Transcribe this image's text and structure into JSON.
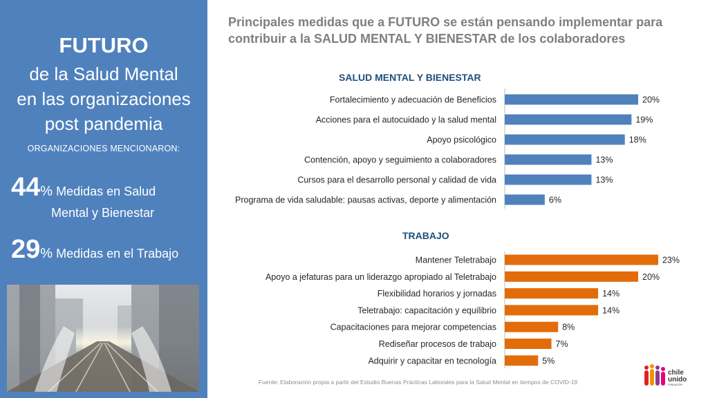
{
  "sidebar": {
    "title": "FUTURO",
    "subtitle_lines": [
      "de la Salud Mental",
      "en las organizaciones",
      "post pandemia"
    ],
    "orgs_label": "ORGANIZACIONES MENCIONARON:",
    "stats": [
      {
        "value": "44",
        "pct": "%",
        "text_line1": " Medidas en Salud",
        "text_line2": "Mental y Bienestar"
      },
      {
        "value": "29",
        "pct": "%",
        "text_line1": " Medidas en el Trabajo"
      }
    ]
  },
  "headline": {
    "line1": "Principales medidas que a FUTURO se están pensando implementar para",
    "line2": "contribuir a la SALUD MENTAL Y BIENESTAR de los colaboradores"
  },
  "chart_data": [
    {
      "type": "bar",
      "orientation": "horizontal",
      "title": "SALUD MENTAL Y BIENESTAR",
      "color": "#4f81bd",
      "unit": "%",
      "categories": [
        "Fortalecimiento y adecuación de Beneficios",
        "Acciones para el autocuidado y la salud mental",
        "Apoyo psicológico",
        "Contención, apoyo y seguimiento a colaboradores",
        "Cursos para el desarrollo personal y calidad de vida",
        "Programa de vida saludable: pausas activas, deporte y alimentación"
      ],
      "values": [
        20,
        19,
        18,
        13,
        13,
        6
      ],
      "labels": [
        "20%",
        "19%",
        "18%",
        "13%",
        "13%",
        "6%"
      ]
    },
    {
      "type": "bar",
      "orientation": "horizontal",
      "title": "TRABAJO",
      "color": "#e36c0a",
      "unit": "%",
      "categories": [
        "Mantener Teletrabajo",
        "Apoyo a jefaturas para un liderazgo apropiado al Teletrabajo",
        "Flexibilidad horarios y jornadas",
        "Teletrabajo: capacitación y equilibrio",
        "Capacitaciones para mejorar competencias",
        "Rediseñar procesos de trabajo",
        "Adquirir y capacitar en tecnología"
      ],
      "values": [
        23,
        20,
        14,
        14,
        8,
        7,
        5
      ],
      "labels": [
        "23%",
        "20%",
        "14%",
        "14%",
        "8%",
        "7%",
        "5%"
      ]
    }
  ],
  "source": "Fuente: Elaboración propia a partir del Estudio Buenas Prácticas  Laborales para la Salud Mental  en tiempos  de COVID-19",
  "logo": {
    "line1": "chile",
    "line2": "unido",
    "line3": "FUNDACIÓN"
  }
}
